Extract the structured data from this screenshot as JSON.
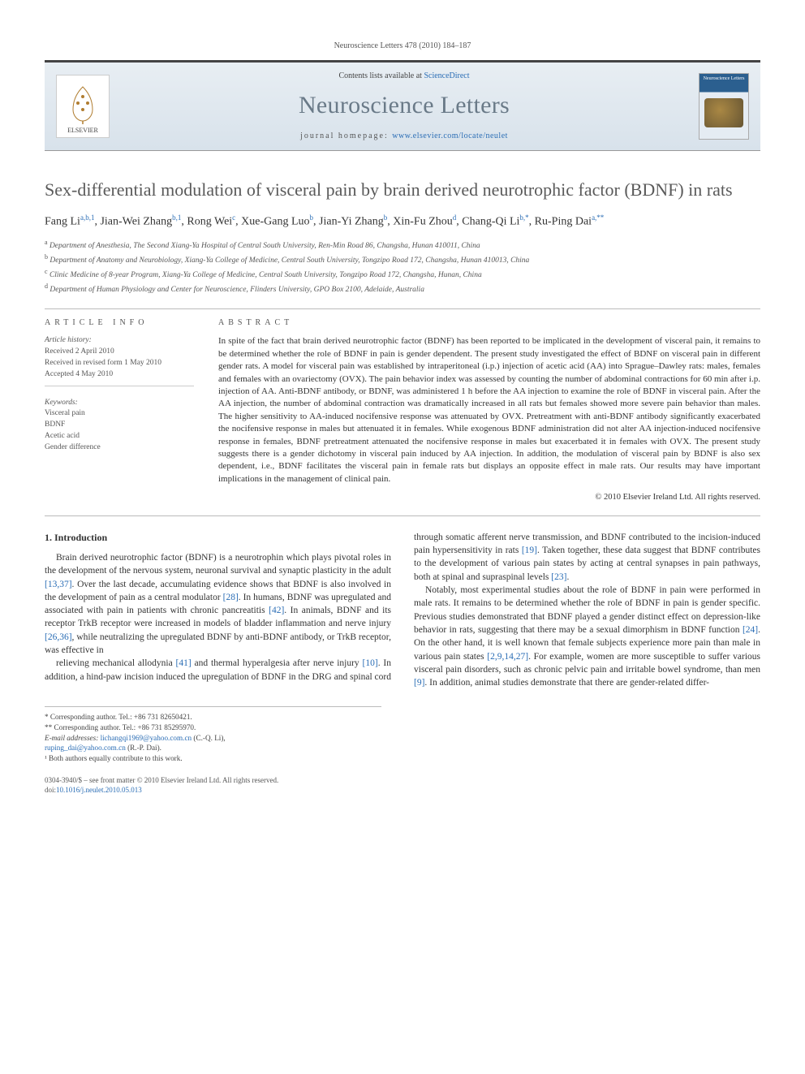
{
  "running_head": "Neuroscience Letters 478 (2010) 184–187",
  "header": {
    "contents_prefix": "Contents lists available at ",
    "contents_link": "ScienceDirect",
    "journal": "Neuroscience Letters",
    "homepage_prefix": "journal homepage: ",
    "homepage_url": "www.elsevier.com/locate/neulet",
    "publisher_logo_label": "ELSEVIER",
    "cover_label": "Neuroscience Letters"
  },
  "article": {
    "title": "Sex-differential modulation of visceral pain by brain derived neurotrophic factor (BDNF) in rats",
    "authors_html": "Fang Li<sup class='sup'>a,b,1</sup>, Jian-Wei Zhang<sup class='sup'>b,1</sup>, Rong Wei<sup class='sup'>c</sup>, Xue-Gang Luo<sup class='sup'>b</sup>, Jian-Yi Zhang<sup class='sup'>b</sup>, Xin-Fu Zhou<sup class='sup'>d</sup>, Chang-Qi Li<sup class='sup'>b,*</sup>, Ru-Ping Dai<sup class='sup'>a,**</sup>",
    "affiliations": [
      {
        "key": "a",
        "text": "Department of Anesthesia, The Second Xiang-Ya Hospital of Central South University, Ren-Min Road 86, Changsha, Hunan 410011, China"
      },
      {
        "key": "b",
        "text": "Department of Anatomy and Neurobiology, Xiang-Ya College of Medicine, Central South University, Tongzipo Road 172, Changsha, Hunan 410013, China"
      },
      {
        "key": "c",
        "text": "Clinic Medicine of 8-year Program, Xiang-Ya College of Medicine, Central South University, Tongzipo Road 172, Changsha, Hunan, China"
      },
      {
        "key": "d",
        "text": "Department of Human Physiology and Center for Neuroscience, Flinders University, GPO Box 2100, Adelaide, Australia"
      }
    ]
  },
  "info": {
    "heading": "ARTICLE INFO",
    "history_label": "Article history:",
    "received": "Received 2 April 2010",
    "revised": "Received in revised form 1 May 2010",
    "accepted": "Accepted 4 May 2010",
    "keywords_label": "Keywords:",
    "keywords": [
      "Visceral pain",
      "BDNF",
      "Acetic acid",
      "Gender difference"
    ]
  },
  "abstract": {
    "heading": "ABSTRACT",
    "text": "In spite of the fact that brain derived neurotrophic factor (BDNF) has been reported to be implicated in the development of visceral pain, it remains to be determined whether the role of BDNF in pain is gender dependent. The present study investigated the effect of BDNF on visceral pain in different gender rats. A model for visceral pain was established by intraperitoneal (i.p.) injection of acetic acid (AA) into Sprague–Dawley rats: males, females and females with an ovariectomy (OVX). The pain behavior index was assessed by counting the number of abdominal contractions for 60 min after i.p. injection of AA. Anti-BDNF antibody, or BDNF, was administered 1 h before the AA injection to examine the role of BDNF in visceral pain. After the AA injection, the number of abdominal contraction was dramatically increased in all rats but females showed more severe pain behavior than males. The higher sensitivity to AA-induced nocifensive response was attenuated by OVX. Pretreatment with anti-BDNF antibody significantly exacerbated the nocifensive response in males but attenuated it in females. While exogenous BDNF administration did not alter AA injection-induced nocifensive response in females, BDNF pretreatment attenuated the nocifensive response in males but exacerbated it in females with OVX. The present study suggests there is a gender dichotomy in visceral pain induced by AA injection. In addition, the modulation of visceral pain by BDNF is also sex dependent, i.e., BDNF facilitates the visceral pain in female rats but displays an opposite effect in male rats. Our results may have important implications in the management of clinical pain.",
    "copyright": "© 2010 Elsevier Ireland Ltd. All rights reserved."
  },
  "body": {
    "section_heading": "1. Introduction",
    "p1": "Brain derived neurotrophic factor (BDNF) is a neurotrophin which plays pivotal roles in the development of the nervous system, neuronal survival and synaptic plasticity in the adult [13,37]. Over the last decade, accumulating evidence shows that BDNF is also involved in the development of pain as a central modulator [28]. In humans, BDNF was upregulated and associated with pain in patients with chronic pancreatitis [42]. In animals, BDNF and its receptor TrkB receptor were increased in models of bladder inflammation and nerve injury [26,36], while neutralizing the upregulated BDNF by anti-BDNF antibody, or TrkB receptor, was effective in",
    "p2": "relieving mechanical allodynia [41] and thermal hyperalgesia after nerve injury [10]. In addition, a hind-paw incision induced the upregulation of BDNF in the DRG and spinal cord through somatic afferent nerve transmission, and BDNF contributed to the incision-induced pain hypersensitivity in rats [19]. Taken together, these data suggest that BDNF contributes to the development of various pain states by acting at central synapses in pain pathways, both at spinal and supraspinal levels [23].",
    "p3": "Notably, most experimental studies about the role of BDNF in pain were performed in male rats. It remains to be determined whether the role of BDNF in pain is gender specific. Previous studies demonstrated that BDNF played a gender distinct effect on depression-like behavior in rats, suggesting that there may be a sexual dimorphism in BDNF function [24]. On the other hand, it is well known that female subjects experience more pain than male in various pain states [2,9,14,27]. For example, women are more susceptible to suffer various visceral pain disorders, such as chronic pelvic pain and irritable bowel syndrome, than men [9]. In addition, animal studies demonstrate that there are gender-related differ-",
    "refs_1": "[13,37]",
    "refs_2": "[28]",
    "refs_3": "[42]",
    "refs_4": "[26,36]",
    "refs_5": "[41]",
    "refs_6": "[10]",
    "refs_7": "[19]",
    "refs_8": "[23]",
    "refs_9": "[24]",
    "refs_10": "[2,9,14,27]",
    "refs_11": "[9]"
  },
  "footnotes": {
    "corr1": "* Corresponding author. Tel.: +86 731 82650421.",
    "corr2": "** Corresponding author. Tel.: +86 731 85295970.",
    "email_label": "E-mail addresses: ",
    "email1": "lichangqi1969@yahoo.com.cn",
    "email1_who": " (C.-Q. Li),",
    "email2": "ruping_dai@yahoo.com.cn",
    "email2_who": " (R.-P. Dai).",
    "note1": "¹ Both authors equally contribute to this work."
  },
  "footer": {
    "line1": "0304-3940/$ – see front matter © 2010 Elsevier Ireland Ltd. All rights reserved.",
    "doi_label": "doi:",
    "doi": "10.1016/j.neulet.2010.05.013"
  },
  "colors": {
    "link": "#2a6db5",
    "header_bg_top": "#e8eef3",
    "header_bg_bot": "#d8e2eb",
    "journal_gray": "#6a7a88",
    "rule": "#bbbbbb",
    "text": "#333333"
  }
}
